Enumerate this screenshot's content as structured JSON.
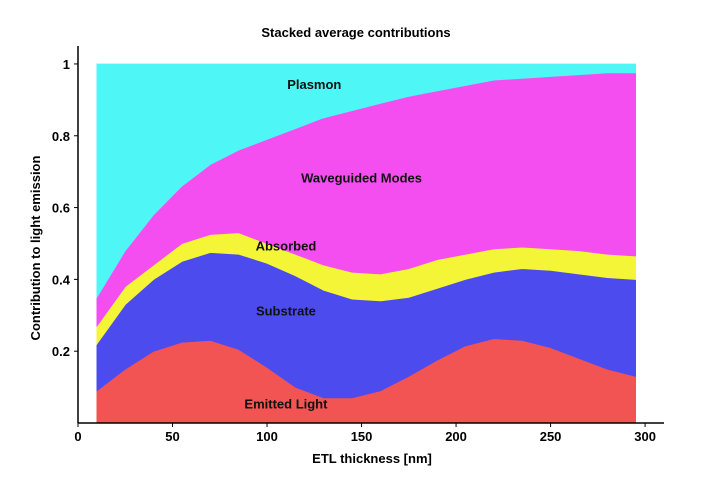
{
  "chart_data": {
    "type": "area",
    "stacked": true,
    "title": "Stacked average contributions",
    "xlabel": "ETL thickness [nm]",
    "ylabel": "Contribution to light emission",
    "xlim": [
      0,
      310
    ],
    "ylim": [
      0,
      1.05
    ],
    "x_ticks": [
      0,
      50,
      100,
      150,
      200,
      250,
      300
    ],
    "y_ticks": [
      {
        "value": 0.2,
        "label": "0.2"
      },
      {
        "value": 0.4,
        "label": "0.4"
      },
      {
        "value": 0.6,
        "label": "0.6"
      },
      {
        "value": 0.8,
        "label": "0.8"
      },
      {
        "value": 1.0,
        "label": "1"
      }
    ],
    "x": [
      10,
      25,
      40,
      55,
      70,
      85,
      100,
      115,
      130,
      145,
      160,
      175,
      190,
      205,
      220,
      235,
      250,
      265,
      280,
      295
    ],
    "series": [
      {
        "name": "Emitted Light",
        "color": "#f25353",
        "cumulative": [
          0.09,
          0.15,
          0.2,
          0.225,
          0.23,
          0.205,
          0.155,
          0.1,
          0.07,
          0.07,
          0.09,
          0.13,
          0.175,
          0.215,
          0.235,
          0.23,
          0.21,
          0.18,
          0.15,
          0.13
        ]
      },
      {
        "name": "Substrate",
        "color": "#4c4cee",
        "cumulative": [
          0.22,
          0.33,
          0.4,
          0.45,
          0.475,
          0.47,
          0.445,
          0.41,
          0.37,
          0.345,
          0.34,
          0.35,
          0.375,
          0.4,
          0.42,
          0.43,
          0.425,
          0.415,
          0.405,
          0.4
        ]
      },
      {
        "name": "Absorbed",
        "color": "#f5f538",
        "cumulative": [
          0.27,
          0.38,
          0.44,
          0.5,
          0.525,
          0.53,
          0.5,
          0.47,
          0.44,
          0.42,
          0.415,
          0.43,
          0.455,
          0.47,
          0.485,
          0.49,
          0.485,
          0.48,
          0.47,
          0.465
        ]
      },
      {
        "name": "Waveguided Modes",
        "color": "#f54ef0",
        "cumulative": [
          0.35,
          0.48,
          0.58,
          0.66,
          0.72,
          0.76,
          0.79,
          0.82,
          0.85,
          0.87,
          0.89,
          0.91,
          0.925,
          0.94,
          0.955,
          0.96,
          0.965,
          0.97,
          0.975,
          0.975
        ]
      },
      {
        "name": "Plasmon",
        "color": "#4ef6f6",
        "cumulative": [
          1,
          1,
          1,
          1,
          1,
          1,
          1,
          1,
          1,
          1,
          1,
          1,
          1,
          1,
          1,
          1,
          1,
          1,
          1,
          1
        ]
      }
    ],
    "annotations": [
      {
        "text": "Plasmon",
        "x": 125,
        "y": 0.93
      },
      {
        "text": "Waveguided Modes",
        "x": 150,
        "y": 0.67
      },
      {
        "text": "Absorbed",
        "x": 110,
        "y": 0.48
      },
      {
        "text": "Substrate",
        "x": 110,
        "y": 0.3
      },
      {
        "text": "Emitted Light",
        "x": 110,
        "y": 0.04
      }
    ]
  }
}
